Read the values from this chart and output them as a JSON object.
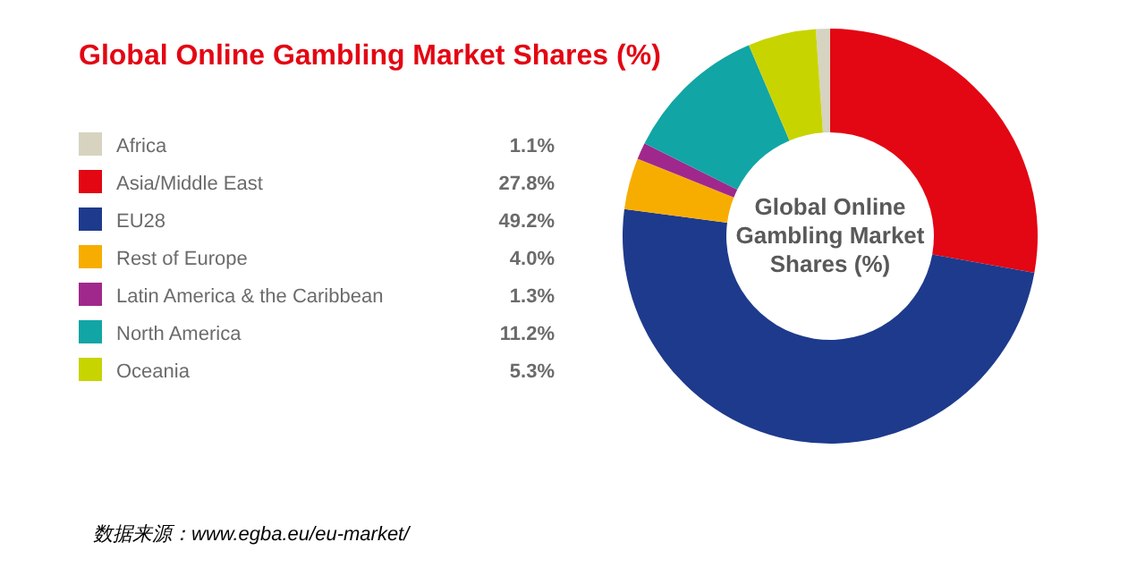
{
  "chart_data": {
    "type": "donut",
    "title": "Global Online Gambling Market Shares (%)",
    "categories": [
      "Africa",
      "Asia/Middle East",
      "EU28",
      "Rest of Europe",
      "Latin America & the Caribbean",
      "North America",
      "Oceania"
    ],
    "values": [
      1.1,
      27.8,
      49.2,
      4.0,
      1.3,
      11.2,
      5.3
    ],
    "colors": [
      "#d6d3c0",
      "#e30613",
      "#1e3a8c",
      "#f7ad00",
      "#a0288c",
      "#12a5a5",
      "#c8d400"
    ],
    "value_labels": [
      "1.1%",
      "27.8%",
      "49.2%",
      "4.0%",
      "1.3%",
      "11.2%",
      "5.3%"
    ],
    "legend": "left",
    "annotations": [
      "Global Online Gambling Market Shares (%)",
      "数据来源：www.egba.eu/eu-market/"
    ]
  }
}
